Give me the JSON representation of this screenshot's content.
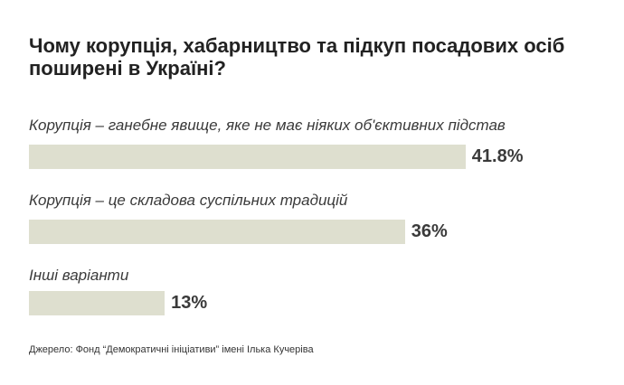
{
  "chart_data": {
    "type": "bar",
    "orientation": "horizontal",
    "title": "Чому корупція, хабарництво та підкуп посадових осіб поширені в Україні?",
    "categories": [
      "Корупція – ганебне явище, яке не має ніяких об'єктивних підстав",
      "Корупція – це складова суспільних традицій",
      "Інші варіанти"
    ],
    "values": [
      41.8,
      36,
      13
    ],
    "value_labels": [
      "41.8%",
      "36%",
      "13%"
    ],
    "xlim": [
      0,
      100
    ],
    "grid": false,
    "bar_color": "#dedfcf"
  },
  "source": "Джерело: Фонд “Демократичні ініціативи” імені Ілька Кучеріва"
}
